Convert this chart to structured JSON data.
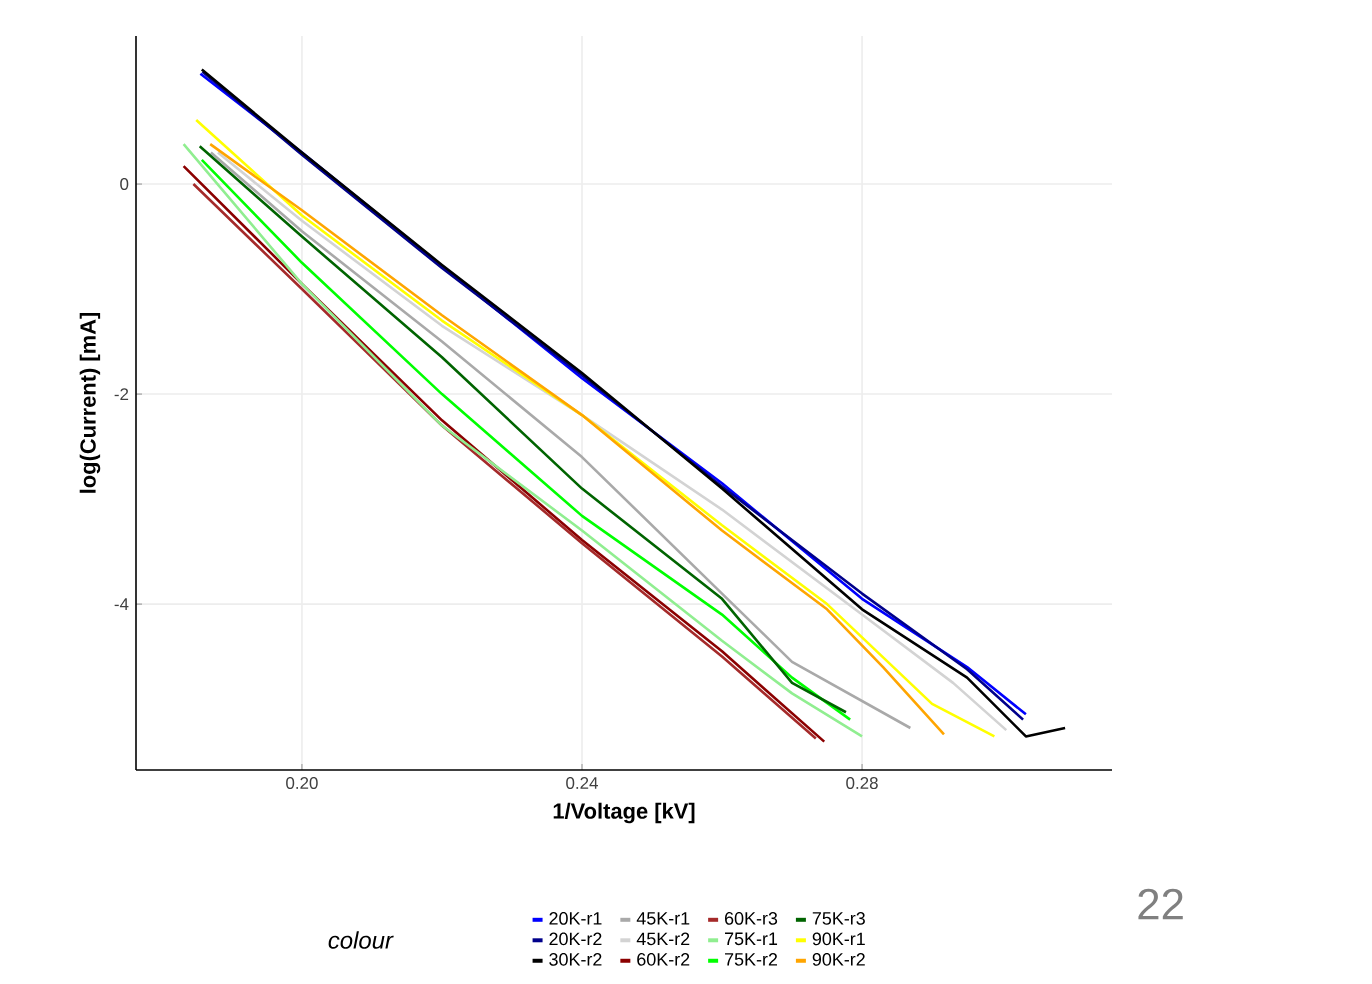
{
  "chart_data": {
    "type": "line",
    "xlabel": "1/Voltage   [kV]",
    "ylabel": "log(Current)    [mA]",
    "legend_title": "colour",
    "legend": "bottom",
    "grid": true,
    "xlim": [
      0.1763,
      0.3157
    ],
    "ylim": [
      -5.58,
      1.41
    ],
    "xticks": [
      {
        "value": 0.2,
        "label": "0.20"
      },
      {
        "value": 0.24,
        "label": "0.24"
      },
      {
        "value": 0.28,
        "label": "0.28"
      }
    ],
    "yticks": [
      -4,
      -2,
      0
    ],
    "annotations": [
      "22"
    ],
    "series": [
      {
        "name": "20K-r1",
        "color": "#0000ff",
        "x": [
          0.1855,
          0.2,
          0.22,
          0.24,
          0.26,
          0.28,
          0.295,
          0.3034
        ],
        "values": [
          1.05,
          0.3,
          -0.78,
          -1.85,
          -2.85,
          -3.95,
          -4.6,
          -5.05
        ]
      },
      {
        "name": "20K-r2",
        "color": "#00008b",
        "x": [
          0.1858,
          0.2,
          0.22,
          0.24,
          0.26,
          0.28,
          0.295,
          0.303
        ],
        "values": [
          1.07,
          0.28,
          -0.8,
          -1.82,
          -2.88,
          -3.9,
          -4.62,
          -5.1
        ]
      },
      {
        "name": "30K-r2",
        "color": "#000000",
        "x": [
          0.1857,
          0.2,
          0.22,
          0.24,
          0.26,
          0.28,
          0.295,
          0.3034,
          0.309
        ],
        "values": [
          1.09,
          0.3,
          -0.77,
          -1.8,
          -2.9,
          -4.05,
          -4.7,
          -5.26,
          -5.18
        ]
      },
      {
        "name": "45K-r1",
        "color": "#a9a9a9",
        "x": [
          0.187,
          0.2,
          0.22,
          0.24,
          0.26,
          0.27,
          0.2869
        ],
        "values": [
          0.3,
          -0.45,
          -1.5,
          -2.6,
          -3.9,
          -4.55,
          -5.18
        ]
      },
      {
        "name": "45K-r2",
        "color": "#d3d3d3",
        "x": [
          0.188,
          0.2,
          0.22,
          0.24,
          0.26,
          0.28,
          0.293,
          0.3006
        ],
        "values": [
          0.3,
          -0.35,
          -1.35,
          -2.2,
          -3.1,
          -4.1,
          -4.75,
          -5.2
        ]
      },
      {
        "name": "60K-r2",
        "color": "#8b0000",
        "x": [
          0.1831,
          0.2,
          0.22,
          0.24,
          0.26,
          0.2746
        ],
        "values": [
          0.17,
          -0.95,
          -2.25,
          -3.39,
          -4.45,
          -5.31
        ]
      },
      {
        "name": "60K-r3",
        "color": "#a52a2a",
        "x": [
          0.1845,
          0.2,
          0.22,
          0.24,
          0.26,
          0.2734
        ],
        "values": [
          0.0,
          -1.0,
          -2.3,
          -3.42,
          -4.5,
          -5.28
        ]
      },
      {
        "name": "75K-r1",
        "color": "#90ee90",
        "x": [
          0.1831,
          0.2,
          0.22,
          0.24,
          0.26,
          0.27,
          0.28
        ],
        "values": [
          0.38,
          -0.95,
          -2.3,
          -3.3,
          -4.35,
          -4.85,
          -5.26
        ]
      },
      {
        "name": "75K-r2",
        "color": "#00ff00",
        "x": [
          0.1857,
          0.2,
          0.22,
          0.24,
          0.26,
          0.27,
          0.2783
        ],
        "values": [
          0.23,
          -0.75,
          -2.0,
          -3.16,
          -4.1,
          -4.7,
          -5.1
        ]
      },
      {
        "name": "75K-r3",
        "color": "#006400",
        "x": [
          0.1854,
          0.2,
          0.22,
          0.24,
          0.26,
          0.27,
          0.2777
        ],
        "values": [
          0.36,
          -0.5,
          -1.65,
          -2.9,
          -3.95,
          -4.75,
          -5.03
        ]
      },
      {
        "name": "90K-r1",
        "color": "#ffff00",
        "x": [
          0.1849,
          0.2,
          0.22,
          0.24,
          0.26,
          0.275,
          0.29,
          0.2989
        ],
        "values": [
          0.61,
          -0.3,
          -1.3,
          -2.2,
          -3.25,
          -4.0,
          -4.95,
          -5.26
        ]
      },
      {
        "name": "90K-r2",
        "color": "#ffa500",
        "x": [
          0.1869,
          0.2,
          0.22,
          0.24,
          0.26,
          0.275,
          0.283,
          0.2917
        ],
        "values": [
          0.38,
          -0.25,
          -1.25,
          -2.2,
          -3.3,
          -4.05,
          -4.6,
          -5.24
        ]
      }
    ]
  }
}
